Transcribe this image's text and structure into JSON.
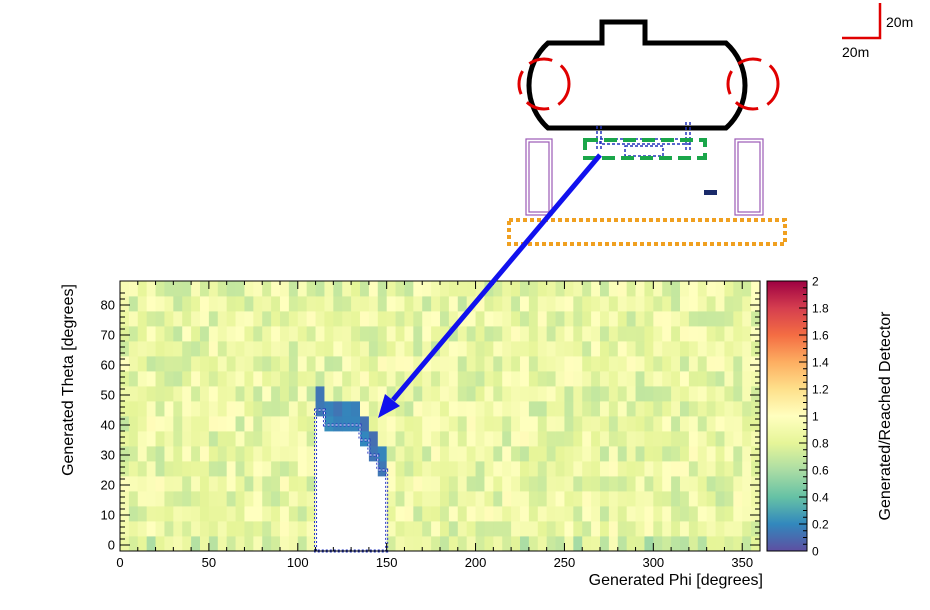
{
  "chart_data": {
    "type": "heatmap",
    "xlabel": "Generated Phi [degrees]",
    "ylabel": "Generated Theta [degrees]",
    "zlabel": "Generated/Reached Detector",
    "xlim": [
      0,
      360
    ],
    "ylim": [
      -2,
      88
    ],
    "zlim": [
      0,
      2
    ],
    "x_ticks": [
      0,
      50,
      100,
      150,
      200,
      250,
      300,
      350
    ],
    "y_ticks": [
      0,
      10,
      20,
      30,
      40,
      50,
      60,
      70,
      80
    ],
    "z_ticks": [
      0,
      0.2,
      0.4,
      0.6,
      0.8,
      1,
      1.2,
      1.4,
      1.6,
      1.8,
      2
    ],
    "bin_width_phi": 5,
    "bin_width_theta": 5,
    "typical_ratio": 0.85,
    "empty_region": {
      "columns": [
        {
          "phi": [
            110,
            115
          ],
          "theta_max": 45
        },
        {
          "phi": [
            115,
            120
          ],
          "theta_max": 40
        },
        {
          "phi": [
            120,
            125
          ],
          "theta_max": 40
        },
        {
          "phi": [
            125,
            130
          ],
          "theta_max": 40
        },
        {
          "phi": [
            130,
            135
          ],
          "theta_max": 40
        },
        {
          "phi": [
            135,
            140
          ],
          "theta_max": 35
        },
        {
          "phi": [
            140,
            145
          ],
          "theta_max": 30
        },
        {
          "phi": [
            145,
            150
          ],
          "theta_max": 25
        }
      ],
      "edge_ratio": 0.1
    },
    "colorscale": [
      "#5e4fa2",
      "#3288bd",
      "#66c2a5",
      "#abdda4",
      "#e6f598",
      "#ffffbf",
      "#fee08b",
      "#fdae61",
      "#f46d43",
      "#d53e4f",
      "#9e0142"
    ]
  },
  "scale_bar": {
    "vertical_label": "20m",
    "horizontal_label": "20m",
    "color": "#e00000"
  },
  "schematic": {
    "outline_color": "#000000",
    "ring_color": "#e00000",
    "green_box_color": "#1aa64a",
    "orange_box_color": "#f0a020",
    "pipe_color": "#2233bb",
    "arrow_color": "#1111ee"
  }
}
